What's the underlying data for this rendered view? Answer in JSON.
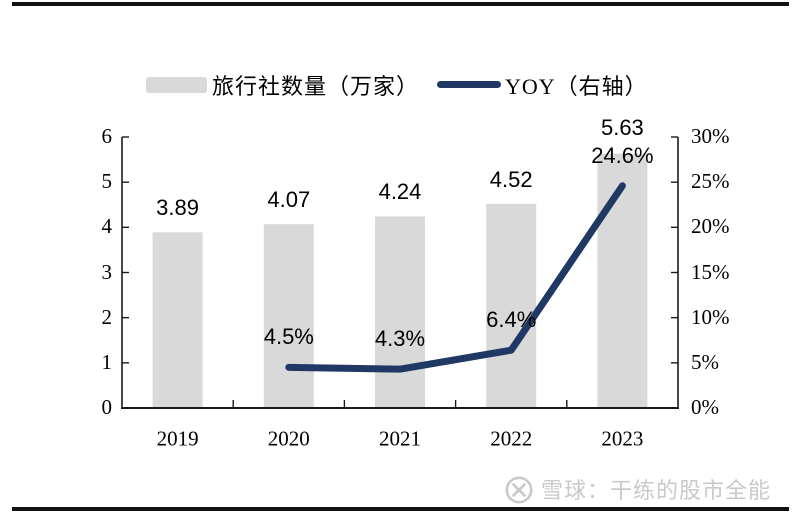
{
  "chart_data": {
    "type": "combo-bar-line",
    "categories": [
      "2019",
      "2020",
      "2021",
      "2022",
      "2023"
    ],
    "series": [
      {
        "name": "旅行社数量（万家）",
        "type": "bar",
        "axis": "left",
        "color": "#d9d9d9",
        "values": [
          3.89,
          4.07,
          4.24,
          4.52,
          5.63
        ],
        "labels": [
          "3.89",
          "4.07",
          "4.24",
          "4.52",
          "5.63"
        ]
      },
      {
        "name": "YOY（右轴）",
        "type": "line",
        "axis": "right",
        "color": "#1f3864",
        "values": [
          null,
          4.5,
          4.3,
          6.4,
          24.6
        ],
        "labels": [
          null,
          "4.5%",
          "4.3%",
          "6.4%",
          "24.6%"
        ]
      }
    ],
    "left_axis": {
      "min": 0,
      "max": 6,
      "step": 1,
      "tick_labels": [
        "0",
        "1",
        "2",
        "3",
        "4",
        "5",
        "6"
      ]
    },
    "right_axis": {
      "min": 0,
      "max": 30,
      "step": 5,
      "tick_labels": [
        "0%",
        "5%",
        "10%",
        "15%",
        "20%",
        "25%",
        "30%"
      ]
    },
    "legend_position": "top",
    "grid": false,
    "title": ""
  },
  "legend": {
    "bar_label": "旅行社数量（万家）",
    "line_label": "YOY（右轴）"
  },
  "watermark": {
    "text": "雪球：干练的股市全能",
    "icon": "xueqiu-logo"
  },
  "colors": {
    "bar": "#d9d9d9",
    "line": "#1f3864",
    "axis": "#1a1a1a",
    "text": "#000000",
    "watermark": "#c9c9c9",
    "rule": "#111111",
    "background": "#ffffff"
  }
}
